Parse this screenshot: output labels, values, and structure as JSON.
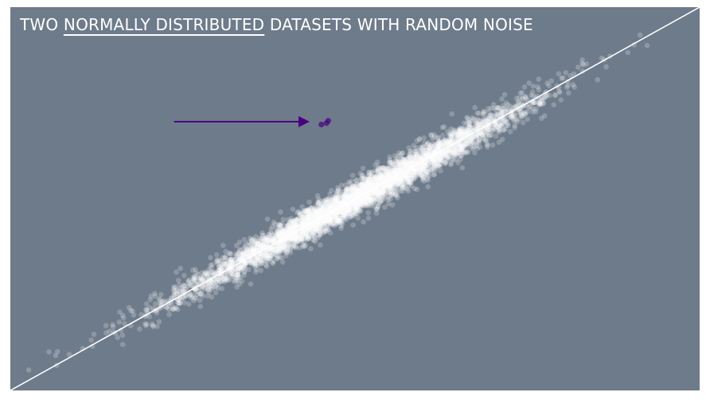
{
  "chart_data": {
    "type": "scatter",
    "title_parts": [
      "TWO ",
      "NORMALLY DISTRIBUTED",
      " DATASETS WITH RANDOM NOISE"
    ],
    "xlabel": "",
    "ylabel": "",
    "grid": false,
    "axes_visible": false,
    "xlim": [
      -4,
      4
    ],
    "ylim": [
      -4,
      4
    ],
    "series": [
      {
        "role": "bulk",
        "color": "#ffffff",
        "opacity": 0.22,
        "count": 5000,
        "mean": [
          0,
          0
        ],
        "std": 1.0,
        "noise": 0.12
      },
      {
        "role": "outliers",
        "color": "#4b0082",
        "opacity": 0.7,
        "points": [
          [
            -0.39,
            1.55
          ],
          [
            -0.33,
            1.58
          ],
          [
            -0.31,
            1.63
          ]
        ]
      }
    ],
    "reference_line": {
      "color": "#ffffff",
      "from": [
        -4.0,
        -4.0
      ],
      "to": [
        4.0,
        4.0
      ]
    },
    "annotation": {
      "type": "arrow",
      "color": "#4b0082",
      "from": [
        -2.1,
        1.61
      ],
      "to": [
        -0.54,
        1.61
      ]
    }
  },
  "colors": {
    "background": "#6e7b8b",
    "points": "#ffffff",
    "highlight": "#4b0082"
  }
}
